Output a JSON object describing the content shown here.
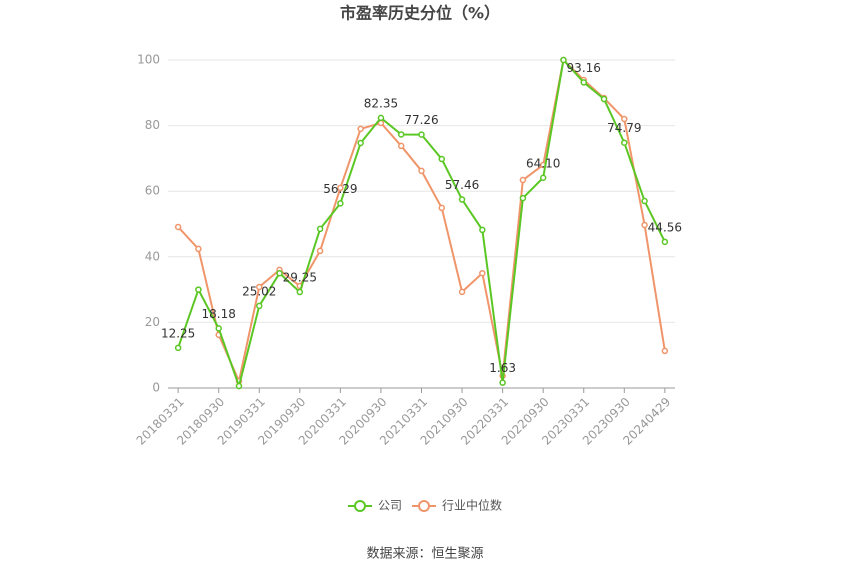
{
  "chart_data": {
    "type": "line",
    "title": "市盈率历史分位（%）",
    "categories": [
      "20180331",
      null,
      "20180930",
      null,
      "20190331",
      null,
      "20190930",
      null,
      "20200331",
      null,
      "20200930",
      null,
      "20210331",
      null,
      "20210930",
      null,
      "20220331",
      null,
      "20220930",
      null,
      "20230331",
      null,
      "20230930",
      null,
      "20240429"
    ],
    "series": [
      {
        "name": "公司",
        "color": "#5ac724",
        "values": [
          12.25,
          30,
          18.18,
          0.6,
          25.02,
          35,
          29.25,
          48.5,
          56.29,
          74.7,
          82.35,
          77.3,
          77.26,
          69.8,
          57.46,
          48.2,
          1.63,
          57.9,
          64.1,
          100,
          93.16,
          88.1,
          74.79,
          57,
          44.56
        ],
        "value_labels": [
          "12.25",
          null,
          "18.18",
          null,
          "25.02",
          null,
          "29.25",
          null,
          "56.29",
          null,
          "82.35",
          null,
          "77.26",
          null,
          "57.46",
          null,
          "1.63",
          null,
          "64.10",
          null,
          "93.16",
          null,
          "74.79",
          null,
          "44.56"
        ]
      },
      {
        "name": "行业中位数",
        "color": "#f0956a",
        "values": [
          49.1,
          42.4,
          16.2,
          2.1,
          30.8,
          36,
          31.1,
          41.8,
          61,
          79,
          80.8,
          73.8,
          66.2,
          54.9,
          29.3,
          35,
          3.7,
          63.4,
          68,
          100,
          93.9,
          88.4,
          82,
          49.7,
          11.3
        ]
      }
    ],
    "ylim": [
      0,
      100
    ],
    "yticks": [
      0,
      20,
      40,
      60,
      80,
      100
    ],
    "grid": true,
    "source": "数据来源：恒生聚源"
  }
}
